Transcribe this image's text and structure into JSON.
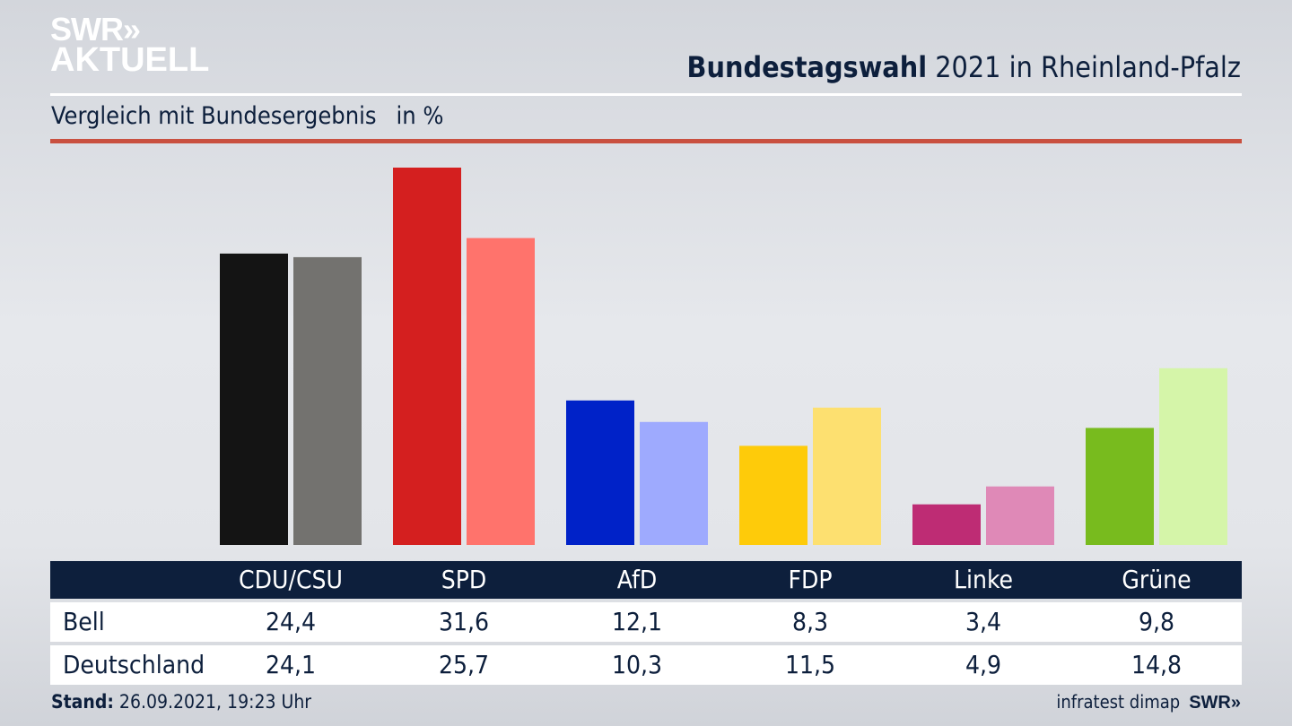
{
  "brand": {
    "logo_line1": "SWR»",
    "logo_line2": "AKTUELL"
  },
  "header": {
    "title_bold": "Bundestagswahl",
    "title_rest": "2021 in Rheinland-Pfalz",
    "subtitle": "Vergleich mit Bundesergebnis",
    "unit": "in %"
  },
  "chart_data": {
    "type": "bar",
    "title": "Bundestagswahl 2021 in Rheinland-Pfalz",
    "subtitle": "Vergleich mit Bundesergebnis in %",
    "categories": [
      "CDU/CSU",
      "SPD",
      "AfD",
      "FDP",
      "Linke",
      "Grüne"
    ],
    "series": [
      {
        "name": "Bell",
        "values": [
          "24,4",
          "31,6",
          "12,1",
          "8,3",
          "3,4",
          "9,8"
        ],
        "numeric": [
          24.4,
          31.6,
          12.1,
          8.3,
          3.4,
          9.8
        ],
        "colors": [
          "#141414",
          "#d41f1f",
          "#0022c8",
          "#fecb0a",
          "#be2c74",
          "#78bb1e"
        ]
      },
      {
        "name": "Deutschland",
        "values": [
          "24,1",
          "25,7",
          "10,3",
          "11,5",
          "4,9",
          "14,8"
        ],
        "numeric": [
          24.1,
          25.7,
          10.3,
          11.5,
          4.9,
          14.8
        ],
        "colors": [
          "#73726f",
          "#ff736c",
          "#9eaafe",
          "#fde070",
          "#df89b7",
          "#d5f5a9"
        ]
      }
    ],
    "ylim": [
      0,
      31.6
    ],
    "grid": false
  },
  "footer": {
    "stand_label": "Stand:",
    "stand_value": "26.09.2021, 19:23 Uhr",
    "source": "infratest dimap",
    "source_logo": "SWR»"
  }
}
